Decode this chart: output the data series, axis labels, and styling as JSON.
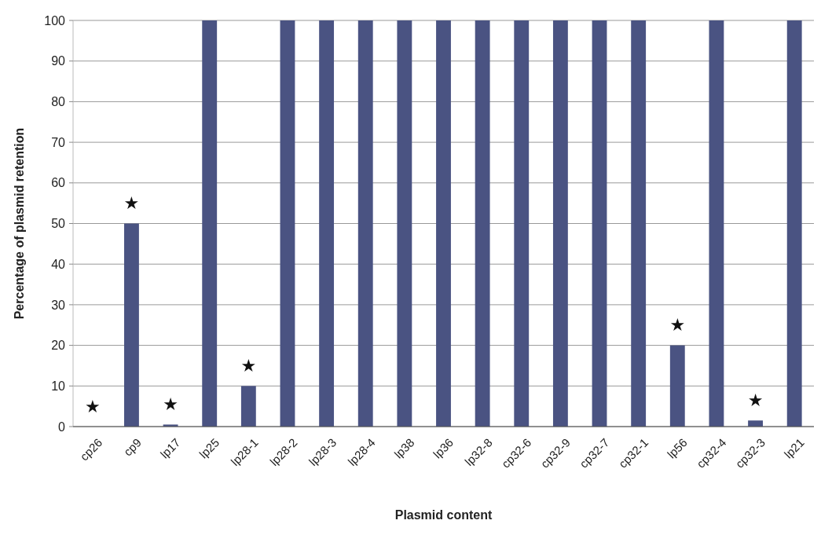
{
  "chart_data": {
    "type": "bar",
    "xlabel": "Plasmid content",
    "ylabel": "Percentage of plasmid retention",
    "categories": [
      "cp26",
      "cp9",
      "lp17",
      "lp25",
      "lp28-1",
      "lp28-2",
      "lp28-3",
      "lp28-4",
      "lp38",
      "lp36",
      "lp32-8",
      "cp32-6",
      "cp32-9",
      "cp32-7",
      "cp32-1",
      "lp56",
      "cp32-4",
      "cp32-3",
      "lp21"
    ],
    "values": [
      0,
      50,
      0.5,
      100,
      10,
      100,
      100,
      100,
      100,
      100,
      100,
      100,
      100,
      100,
      100,
      20,
      100,
      1.5,
      100
    ],
    "color": "#4a5382",
    "ylim": [
      0,
      100
    ],
    "yticks": [
      0,
      10,
      20,
      30,
      40,
      50,
      60,
      70,
      80,
      90,
      100
    ],
    "grid": "y",
    "annotations": [
      {
        "text": "★",
        "x": "cp26",
        "y": 0
      },
      {
        "text": "★",
        "x": "cp9",
        "y": 50
      },
      {
        "text": "★",
        "x": "lp17",
        "y": 0.5
      },
      {
        "text": "★",
        "x": "lp28-1",
        "y": 10
      },
      {
        "text": "★",
        "x": "lp56",
        "y": 20
      },
      {
        "text": "★",
        "x": "cp32-3",
        "y": 1.5
      }
    ]
  }
}
